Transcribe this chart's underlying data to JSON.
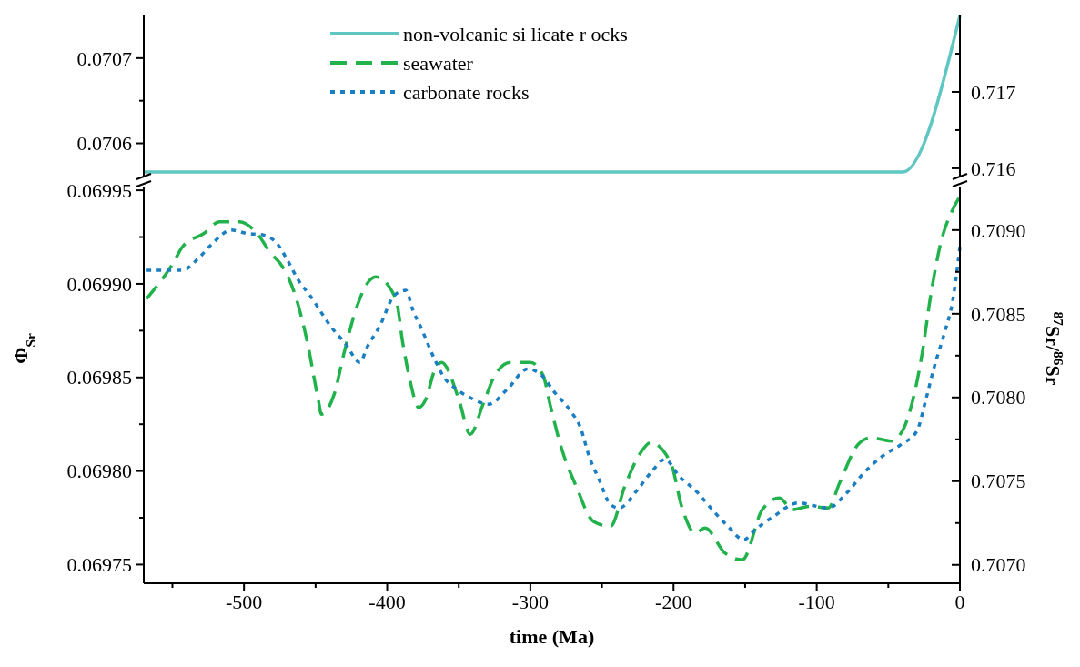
{
  "chart_data": [
    {
      "type": "line",
      "legend": "top",
      "tick_labels": "y",
      "xlim": [
        -570,
        0
      ],
      "ylim": [
        0.07056,
        0.07075
      ],
      "yticks": [
        0.0706,
        {
          "value": 0.07065,
          "label": null
        },
        0.0707
      ],
      "y2lim": [
        0.71588,
        0.718
      ],
      "y2ticks": [
        0.716,
        {
          "value": 0.7165,
          "label": null
        },
        0.717,
        {
          "value": 0.7175,
          "label": null
        }
      ],
      "series": [
        {
          "name": "non-volcanic si licate r ocks",
          "color": "#5fc6c2",
          "line_style": "solid",
          "axis": "y2",
          "x": [
            -570,
            -40,
            0
          ],
          "values": [
            0.71595,
            0.71595,
            0.718
          ]
        }
      ]
    },
    {
      "type": "line",
      "legend": "top",
      "xlabel": "time (Ma)",
      "ylabel": "Φ$_{Sr}$",
      "y2label": "$^{87}$Sr/$^{86}$Sr",
      "xlim": [
        -570,
        0
      ],
      "xticks": [
        {
          "value": -550,
          "label": null
        },
        -500,
        {
          "value": -450,
          "label": null
        },
        -400,
        {
          "value": -350,
          "label": null
        },
        -300,
        {
          "value": -250,
          "label": null
        },
        -200,
        {
          "value": -150,
          "label": null
        },
        -100,
        {
          "value": -50,
          "label": null
        },
        0
      ],
      "ylim": [
        0.06974,
        0.069952
      ],
      "yticks": [
        {
          "value": 0.06975,
          "label": "0.06975"
        },
        {
          "value": 0.069775,
          "label": null
        },
        {
          "value": 0.0698,
          "label": "0.06980"
        },
        {
          "value": 0.069825,
          "label": null
        },
        {
          "value": 0.06985,
          "label": "0.06985"
        },
        {
          "value": 0.069875,
          "label": null
        },
        {
          "value": 0.0699,
          "label": "0.06990"
        },
        {
          "value": 0.069925,
          "label": null
        },
        {
          "value": 0.06995,
          "label": "0.06995"
        }
      ],
      "y2lim": [
        0.70689,
        0.70926
      ],
      "y2ticks": [
        {
          "value": 0.707,
          "label": "0.7070"
        },
        {
          "value": 0.70725,
          "label": null
        },
        {
          "value": 0.7075,
          "label": "0.7075"
        },
        {
          "value": 0.70775,
          "label": null
        },
        {
          "value": 0.708,
          "label": "0.7080"
        },
        {
          "value": 0.70825,
          "label": null
        },
        {
          "value": 0.7085,
          "label": "0.7085"
        },
        {
          "value": 0.70875,
          "label": null
        },
        {
          "value": 0.709,
          "label": "0.7090"
        }
      ],
      "series": [
        {
          "name": "seawater",
          "color": "#22b24c",
          "line_style": "dashed",
          "axis": "y2",
          "x": [
            -568,
            -549,
            -543,
            -528,
            -517,
            -503,
            -493,
            -481,
            -473,
            -465,
            -456,
            -448,
            -446,
            -437,
            -430,
            -422,
            -414,
            -408,
            -394,
            -389,
            -384,
            -378,
            -373,
            -367,
            -362,
            -350,
            -342,
            -333,
            -325,
            -314,
            -300,
            -291,
            -286,
            -278,
            -268,
            -256,
            -244,
            -234,
            -223,
            -216,
            -202,
            -194,
            -185,
            -178,
            -164,
            -152,
            -138,
            -126,
            -117,
            -105,
            -92,
            -84,
            -71,
            -62,
            -48,
            -39,
            -33,
            -27,
            -20,
            -14,
            -4,
            0
          ],
          "values": [
            0.70859,
            0.70881,
            0.7089,
            0.70898,
            0.70905,
            0.70905,
            0.709,
            0.70886,
            0.70878,
            0.70863,
            0.70834,
            0.70798,
            0.7079,
            0.70802,
            0.70827,
            0.70852,
            0.70868,
            0.70872,
            0.70859,
            0.70832,
            0.7081,
            0.70794,
            0.70799,
            0.70816,
            0.70821,
            0.70799,
            0.70778,
            0.70796,
            0.70813,
            0.70821,
            0.70821,
            0.70813,
            0.70795,
            0.70769,
            0.70747,
            0.70726,
            0.70723,
            0.70747,
            0.70767,
            0.70773,
            0.70761,
            0.70734,
            0.70719,
            0.70722,
            0.70707,
            0.70703,
            0.70733,
            0.7074,
            0.70733,
            0.70735,
            0.70734,
            0.70749,
            0.70772,
            0.70776,
            0.70774,
            0.70782,
            0.70798,
            0.70823,
            0.70863,
            0.7089,
            0.70914,
            0.7092
          ]
        },
        {
          "name": "carbonate rocks",
          "color": "#1b7ec2",
          "line_style": "dotted",
          "axis": "y2",
          "x": [
            -568,
            -543,
            -532,
            -522,
            -509,
            -498,
            -486,
            -477,
            -469,
            -462,
            -454,
            -439,
            -429,
            -419,
            -414,
            -405,
            -395,
            -387,
            -382,
            -376,
            -367,
            -361,
            -350,
            -340,
            -329,
            -316,
            -302,
            -293,
            -283,
            -272,
            -265,
            -259,
            -252,
            -244,
            -238,
            -225,
            -215,
            -206,
            -196,
            -183,
            -173,
            -162,
            -151,
            -143,
            -130,
            -113,
            -92,
            -79,
            -67,
            -54,
            -41,
            -30,
            -24,
            -18,
            -11,
            -5,
            0
          ],
          "values": [
            0.70876,
            0.70876,
            0.70883,
            0.70892,
            0.709,
            0.70898,
            0.70897,
            0.70892,
            0.70881,
            0.7087,
            0.70861,
            0.70842,
            0.70832,
            0.70821,
            0.7083,
            0.70843,
            0.70861,
            0.70864,
            0.70852,
            0.70841,
            0.70823,
            0.70813,
            0.70804,
            0.70799,
            0.70796,
            0.70805,
            0.70817,
            0.70814,
            0.70803,
            0.70792,
            0.70782,
            0.70765,
            0.70751,
            0.70736,
            0.70734,
            0.70745,
            0.70756,
            0.70763,
            0.70753,
            0.70743,
            0.70733,
            0.70723,
            0.70715,
            0.70721,
            0.70729,
            0.70737,
            0.70734,
            0.70743,
            0.70755,
            0.70765,
            0.70772,
            0.7078,
            0.70798,
            0.70818,
            0.70838,
            0.70858,
            0.7089
          ]
        }
      ]
    }
  ]
}
